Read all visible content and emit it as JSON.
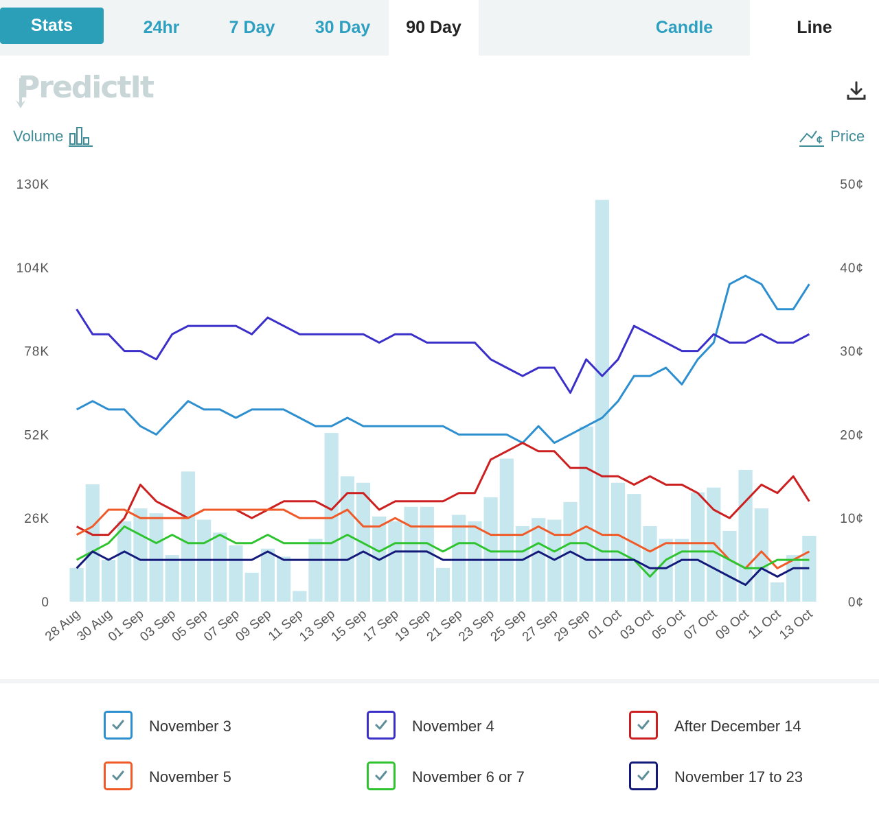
{
  "tabs": {
    "stats": "Stats",
    "ranges": [
      "24hr",
      "7 Day",
      "30 Day",
      "90 Day"
    ],
    "active_range": "90 Day",
    "views": [
      "Candle",
      "Line"
    ],
    "active_view": "Line"
  },
  "brand": {
    "logo_text": "PredictIt"
  },
  "icons": {
    "download": "download-icon",
    "volume": "volume-bars-icon",
    "price": "price-line-icon",
    "check": "check-icon"
  },
  "axes": {
    "left_title": "Volume",
    "right_title": "Price"
  },
  "colors": {
    "accent": "#2b9fb8",
    "volume_bars": "#c6e7ee",
    "axis_text": "#555555"
  },
  "chart_data": {
    "type": "line",
    "title": "",
    "x": [
      "28 Aug",
      "29 Aug",
      "30 Aug",
      "31 Aug",
      "01 Sep",
      "02 Sep",
      "03 Sep",
      "04 Sep",
      "05 Sep",
      "06 Sep",
      "07 Sep",
      "08 Sep",
      "09 Sep",
      "10 Sep",
      "11 Sep",
      "12 Sep",
      "13 Sep",
      "14 Sep",
      "15 Sep",
      "16 Sep",
      "17 Sep",
      "18 Sep",
      "19 Sep",
      "20 Sep",
      "21 Sep",
      "22 Sep",
      "23 Sep",
      "24 Sep",
      "25 Sep",
      "26 Sep",
      "27 Sep",
      "28 Sep",
      "29 Sep",
      "30 Sep",
      "01 Oct",
      "02 Oct",
      "03 Oct",
      "04 Oct",
      "05 Oct",
      "06 Oct",
      "07 Oct",
      "08 Oct",
      "09 Oct",
      "10 Oct",
      "11 Oct",
      "12 Oct",
      "13 Oct"
    ],
    "x_tick_labels": [
      "28 Aug",
      "30 Aug",
      "01 Sep",
      "03 Sep",
      "05 Sep",
      "07 Sep",
      "09 Sep",
      "11 Sep",
      "13 Sep",
      "15 Sep",
      "17 Sep",
      "19 Sep",
      "21 Sep",
      "23 Sep",
      "25 Sep",
      "27 Sep",
      "29 Sep",
      "01 Oct",
      "03 Oct",
      "05 Oct",
      "07 Oct",
      "09 Oct",
      "11 Oct",
      "13 Oct"
    ],
    "volume": {
      "axis_ticks": [
        "0",
        "26K",
        "52K",
        "78K",
        "104K",
        "130K"
      ],
      "ylim": [
        0,
        130000
      ],
      "values": [
        10500,
        36500,
        13000,
        25000,
        29000,
        27500,
        14500,
        40500,
        25500,
        21500,
        17500,
        9000,
        16500,
        14000,
        3300,
        19500,
        52500,
        39000,
        37000,
        26500,
        25000,
        29500,
        29500,
        10500,
        27000,
        25000,
        32500,
        44500,
        23500,
        26000,
        25500,
        31000,
        54500,
        125000,
        37000,
        33500,
        23500,
        19500,
        19500,
        34000,
        35500,
        22000,
        41000,
        29000,
        6000,
        14500,
        20500
      ]
    },
    "price": {
      "axis_ticks": [
        "0¢",
        "10¢",
        "20¢",
        "30¢",
        "40¢",
        "50¢"
      ],
      "ylim": [
        0,
        50
      ],
      "unit": "¢"
    },
    "series": [
      {
        "name": "November 3",
        "color": "#2d8fcf",
        "values": [
          23,
          24,
          23,
          23,
          21,
          20,
          22,
          24,
          23,
          23,
          22,
          23,
          23,
          23,
          22,
          21,
          21,
          22,
          21,
          21,
          21,
          21,
          21,
          21,
          20,
          20,
          20,
          20,
          19,
          21,
          19,
          20,
          21,
          22,
          24,
          27,
          27,
          28,
          26,
          29,
          31,
          38,
          39,
          38,
          35,
          35,
          38
        ]
      },
      {
        "name": "November 4",
        "color": "#3a2fc9",
        "values": [
          35,
          32,
          32,
          30,
          30,
          29,
          32,
          33,
          33,
          33,
          33,
          32,
          34,
          33,
          32,
          32,
          32,
          32,
          32,
          31,
          32,
          32,
          31,
          31,
          31,
          31,
          29,
          28,
          27,
          28,
          28,
          25,
          29,
          27,
          29,
          33,
          32,
          31,
          30,
          30,
          32,
          31,
          31,
          32,
          31,
          31,
          32
        ]
      },
      {
        "name": "After December 14",
        "color": "#cc1f1f",
        "values": [
          9,
          8,
          8,
          10,
          14,
          12,
          11,
          10,
          11,
          11,
          11,
          10,
          11,
          12,
          12,
          12,
          11,
          13,
          13,
          11,
          12,
          12,
          12,
          12,
          13,
          13,
          17,
          18,
          19,
          18,
          18,
          16,
          16,
          15,
          15,
          14,
          15,
          14,
          14,
          13,
          11,
          10,
          12,
          14,
          13,
          15,
          12
        ]
      },
      {
        "name": "November 5",
        "color": "#f05a28",
        "values": [
          8,
          9,
          11,
          11,
          10,
          10,
          10,
          10,
          11,
          11,
          11,
          11,
          11,
          11,
          10,
          10,
          10,
          11,
          9,
          9,
          10,
          9,
          9,
          9,
          9,
          9,
          8,
          8,
          8,
          9,
          8,
          8,
          9,
          8,
          8,
          7,
          6,
          7,
          7,
          7,
          7,
          5,
          4,
          6,
          4,
          5,
          6
        ]
      },
      {
        "name": "November 6 or 7",
        "color": "#2fc42f",
        "values": [
          5,
          6,
          7,
          9,
          8,
          7,
          8,
          7,
          7,
          8,
          7,
          7,
          8,
          7,
          7,
          7,
          7,
          8,
          7,
          6,
          7,
          7,
          7,
          6,
          7,
          7,
          6,
          6,
          6,
          7,
          6,
          7,
          7,
          6,
          6,
          5,
          3,
          5,
          6,
          6,
          6,
          5,
          4,
          4,
          5,
          5,
          5
        ]
      },
      {
        "name": "November 17 to 23",
        "color": "#131a7a",
        "values": [
          4,
          6,
          5,
          6,
          5,
          5,
          5,
          5,
          5,
          5,
          5,
          5,
          6,
          5,
          5,
          5,
          5,
          5,
          6,
          5,
          6,
          6,
          6,
          5,
          5,
          5,
          5,
          5,
          5,
          6,
          5,
          6,
          5,
          5,
          5,
          5,
          4,
          4,
          5,
          5,
          4,
          3,
          2,
          4,
          3,
          4,
          4
        ]
      }
    ],
    "grid": false,
    "legend_placement": "bottom"
  },
  "legend": [
    {
      "label": "November 3",
      "color": "#2d8fcf"
    },
    {
      "label": "November 4",
      "color": "#3a2fc9"
    },
    {
      "label": "After December 14",
      "color": "#cc1f1f"
    },
    {
      "label": "November 5",
      "color": "#f05a28"
    },
    {
      "label": "November 6 or 7",
      "color": "#2fc42f"
    },
    {
      "label": "November 17 to 23",
      "color": "#131a7a"
    }
  ]
}
